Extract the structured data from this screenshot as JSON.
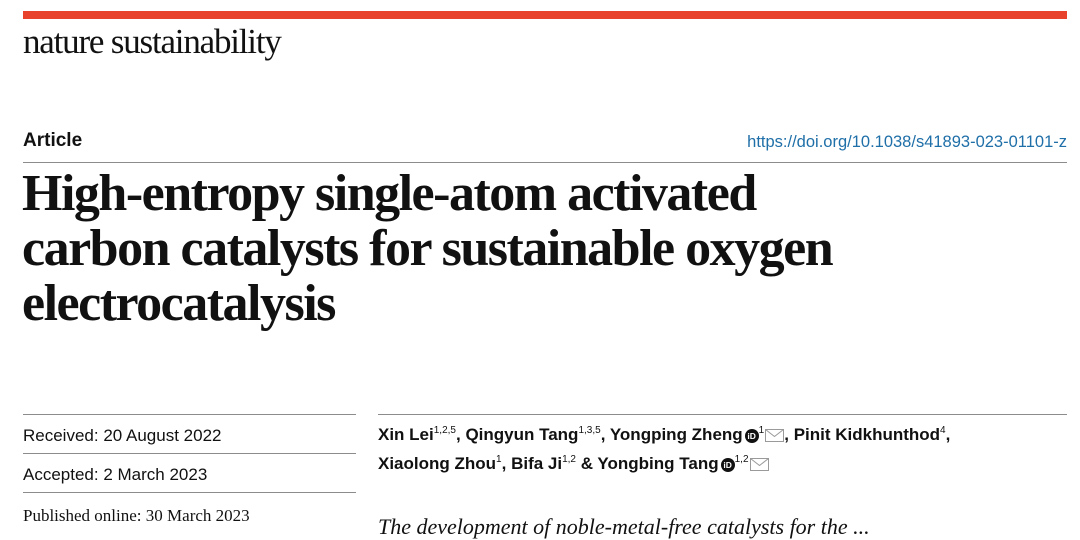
{
  "header": {
    "journal": "nature sustainability",
    "accent_color": "#e8412c",
    "article_type": "Article",
    "doi": "https://doi.org/10.1038/s41893-023-01101-z"
  },
  "title_lines": [
    "High-entropy single-atom activated",
    "carbon catalysts for sustainable oxygen",
    "electrocatalysis"
  ],
  "dates": {
    "received": "Received: 20 August 2022",
    "accepted": "Accepted: 2 March 2023",
    "published": "Published online: 30 March 2023"
  },
  "authors": [
    {
      "name": "Xin Lei",
      "affil": "1,2,5",
      "sep": ", "
    },
    {
      "name": "Qingyun Tang",
      "affil": "1,3,5",
      "sep": ", "
    },
    {
      "name": "Yongping Zheng",
      "affil": "1",
      "orcid": "iD",
      "mail": true,
      "sep": ", "
    },
    {
      "name": "Pinit Kidkhunthod",
      "affil": "4",
      "sep": ","
    },
    {
      "name": "Xiaolong Zhou",
      "affil": "1",
      "sep": ", "
    },
    {
      "name": "Bifa Ji",
      "affil": "1,2",
      "sep": " & "
    },
    {
      "name": "Yongbing Tang",
      "affil": "1,2",
      "orcid": "iD",
      "mail": true,
      "sep": ""
    }
  ],
  "abstract_start": "The development of noble-metal-free catalysts for the ..."
}
